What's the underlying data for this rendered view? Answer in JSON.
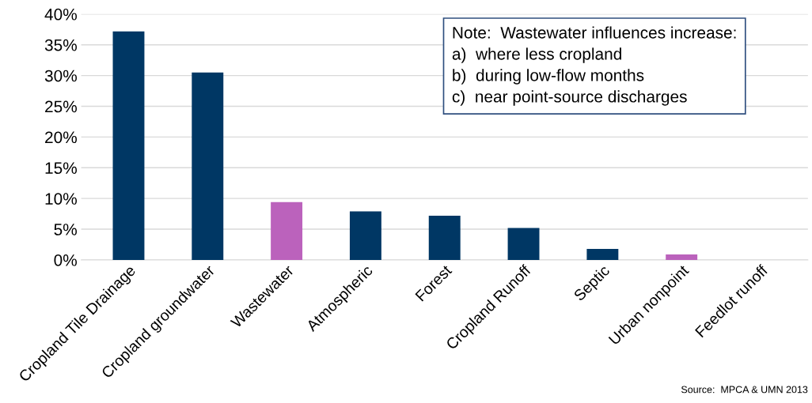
{
  "chart_data": {
    "type": "bar",
    "categories": [
      "Cropland Tile Drainage",
      "Cropland groundwater",
      "Wastewater",
      "Atmospheric",
      "Forest",
      "Cropland Runoff",
      "Septic",
      "Urban nonpoint",
      "Feedlot runoff"
    ],
    "values": [
      37.2,
      30.5,
      9.4,
      7.9,
      7.2,
      5.2,
      1.8,
      0.9,
      0
    ],
    "colors": [
      "#003764",
      "#003764",
      "#bb62bc",
      "#003764",
      "#003764",
      "#003764",
      "#003764",
      "#bb62bc",
      "#003764"
    ],
    "ylim": [
      0,
      40
    ],
    "yticks": [
      {
        "value": 0,
        "label": "0%"
      },
      {
        "value": 5,
        "label": "5%"
      },
      {
        "value": 10,
        "label": "10%"
      },
      {
        "value": 15,
        "label": "15%"
      },
      {
        "value": 20,
        "label": "20%"
      },
      {
        "value": 25,
        "label": "25%"
      },
      {
        "value": 30,
        "label": "30%"
      },
      {
        "value": 35,
        "label": "35%"
      },
      {
        "value": 40,
        "label": "40%"
      }
    ],
    "grid": "y",
    "annotations": [
      "Note:  Wastewater influences increase:\na)  where less cropland\nb)  during low-flow months\nc)  near point-source discharges",
      "Source:  MPCA & UMN 2013"
    ]
  }
}
